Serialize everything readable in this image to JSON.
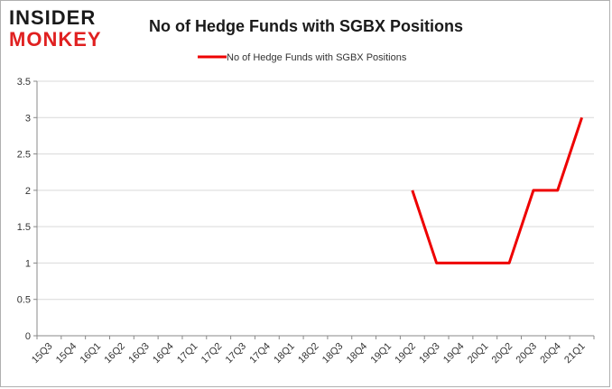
{
  "logo": {
    "line1": "INSIDER",
    "line2": "MONKEY",
    "color_dark": "#1a1a1a",
    "color_red": "#e02020"
  },
  "chart_data": {
    "type": "line",
    "title": "No of Hedge Funds with SGBX Positions",
    "xlabel": "",
    "ylabel": "",
    "categories": [
      "15Q3",
      "15Q4",
      "16Q1",
      "16Q2",
      "16Q3",
      "16Q4",
      "17Q1",
      "17Q2",
      "17Q3",
      "17Q4",
      "18Q1",
      "18Q2",
      "18Q3",
      "18Q4",
      "19Q1",
      "19Q2",
      "19Q3",
      "19Q4",
      "20Q1",
      "20Q2",
      "20Q3",
      "20Q4",
      "21Q1"
    ],
    "series": [
      {
        "name": "No of Hedge Funds with SGBX Positions",
        "color": "#ee0000",
        "values": [
          null,
          null,
          null,
          null,
          null,
          null,
          null,
          null,
          null,
          null,
          null,
          null,
          null,
          null,
          null,
          2,
          1,
          1,
          1,
          1,
          2,
          2,
          3
        ]
      }
    ],
    "ylim": [
      0,
      3.5
    ],
    "yticks": [
      "0",
      "0.5",
      "1",
      "1.5",
      "2",
      "2.5",
      "3",
      "3.5"
    ],
    "legend_position": "top-center",
    "grid": "horizontal",
    "grid_color": "#d9d9d9"
  }
}
